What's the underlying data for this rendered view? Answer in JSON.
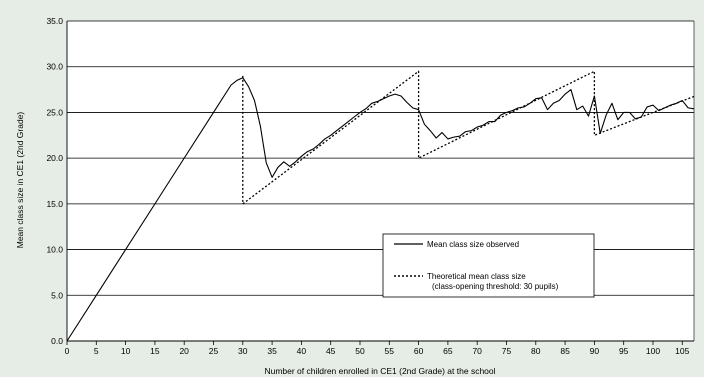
{
  "chart_data": {
    "type": "line",
    "xlabel": "Number of children enrolled in CE1 (2nd Grade) at the school",
    "ylabel": "Mean class size in CE1 (2nd Grade)",
    "xlim": [
      0,
      107
    ],
    "ylim": [
      0,
      35
    ],
    "x_ticks": [
      "0",
      "5",
      "10",
      "15",
      "20",
      "25",
      "30",
      "35",
      "40",
      "45",
      "50",
      "55",
      "60",
      "65",
      "70",
      "75",
      "80",
      "85",
      "90",
      "95",
      "100",
      "105"
    ],
    "y_ticks": [
      "0.0",
      "5.0",
      "10.0",
      "15.0",
      "20.0",
      "25.0",
      "30.0",
      "35.0"
    ],
    "grid": "horizontal",
    "legend_position": "lower-right",
    "series": [
      {
        "name": "Mean class size observed",
        "style": "solid",
        "color": "#000000",
        "points": [
          [
            0,
            0
          ],
          [
            5,
            5
          ],
          [
            10,
            10
          ],
          [
            15,
            15
          ],
          [
            20,
            20
          ],
          [
            25,
            25
          ],
          [
            28,
            28
          ],
          [
            29,
            28.5
          ],
          [
            30,
            28.8
          ],
          [
            31,
            27.8
          ],
          [
            32,
            26.3
          ],
          [
            33,
            23.5
          ],
          [
            34,
            19.5
          ],
          [
            35,
            17.9
          ],
          [
            36,
            19
          ],
          [
            37,
            19.6
          ],
          [
            38,
            19.1
          ],
          [
            39,
            19.6
          ],
          [
            40,
            20.2
          ],
          [
            41,
            20.7
          ],
          [
            42,
            21
          ],
          [
            43,
            21.5
          ],
          [
            44,
            22.1
          ],
          [
            45,
            22.5
          ],
          [
            46,
            23
          ],
          [
            47,
            23.5
          ],
          [
            48,
            24
          ],
          [
            49,
            24.5
          ],
          [
            50,
            25
          ],
          [
            51,
            25.4
          ],
          [
            52,
            26
          ],
          [
            53,
            26.2
          ],
          [
            54,
            26.5
          ],
          [
            55,
            26.8
          ],
          [
            56,
            27
          ],
          [
            57,
            26.8
          ],
          [
            58,
            26.1
          ],
          [
            59,
            25.5
          ],
          [
            60,
            25.3
          ],
          [
            61,
            23.7
          ],
          [
            62,
            23
          ],
          [
            63,
            22.2
          ],
          [
            64,
            22.8
          ],
          [
            65,
            22.1
          ],
          [
            66,
            22.3
          ],
          [
            67,
            22.4
          ],
          [
            68,
            22.9
          ],
          [
            69,
            23
          ],
          [
            70,
            23.4
          ],
          [
            71,
            23.6
          ],
          [
            72,
            24
          ],
          [
            73,
            24
          ],
          [
            74,
            24.7
          ],
          [
            75,
            25
          ],
          [
            76,
            25.2
          ],
          [
            77,
            25.5
          ],
          [
            78,
            25.6
          ],
          [
            79,
            26
          ],
          [
            80,
            26.5
          ],
          [
            81,
            26.6
          ],
          [
            82,
            25.3
          ],
          [
            83,
            26
          ],
          [
            84,
            26.3
          ],
          [
            85,
            27
          ],
          [
            86,
            27.5
          ],
          [
            87,
            25.3
          ],
          [
            88,
            25.7
          ],
          [
            89,
            24.6
          ],
          [
            90,
            26.8
          ],
          [
            91,
            22.7
          ],
          [
            92,
            24.7
          ],
          [
            93,
            26
          ],
          [
            94,
            24.2
          ],
          [
            95,
            25
          ],
          [
            96,
            25
          ],
          [
            97,
            24.3
          ],
          [
            98,
            24.5
          ],
          [
            99,
            25.6
          ],
          [
            100,
            25.8
          ],
          [
            101,
            25.2
          ],
          [
            102,
            25.5
          ],
          [
            103,
            25.8
          ],
          [
            104,
            26
          ],
          [
            105,
            26.3
          ],
          [
            106,
            25.5
          ],
          [
            107,
            25.4
          ]
        ]
      },
      {
        "name": "Theoretical mean class size",
        "name_line2": "(class-opening threshold: 30 pupils)",
        "style": "dotted",
        "color": "#000000",
        "points": [
          [
            30,
            29
          ],
          [
            30,
            15
          ],
          [
            60,
            29.5
          ],
          [
            60,
            20
          ],
          [
            90,
            29.5
          ],
          [
            90,
            22.5
          ],
          [
            107,
            26.75
          ]
        ]
      }
    ]
  }
}
